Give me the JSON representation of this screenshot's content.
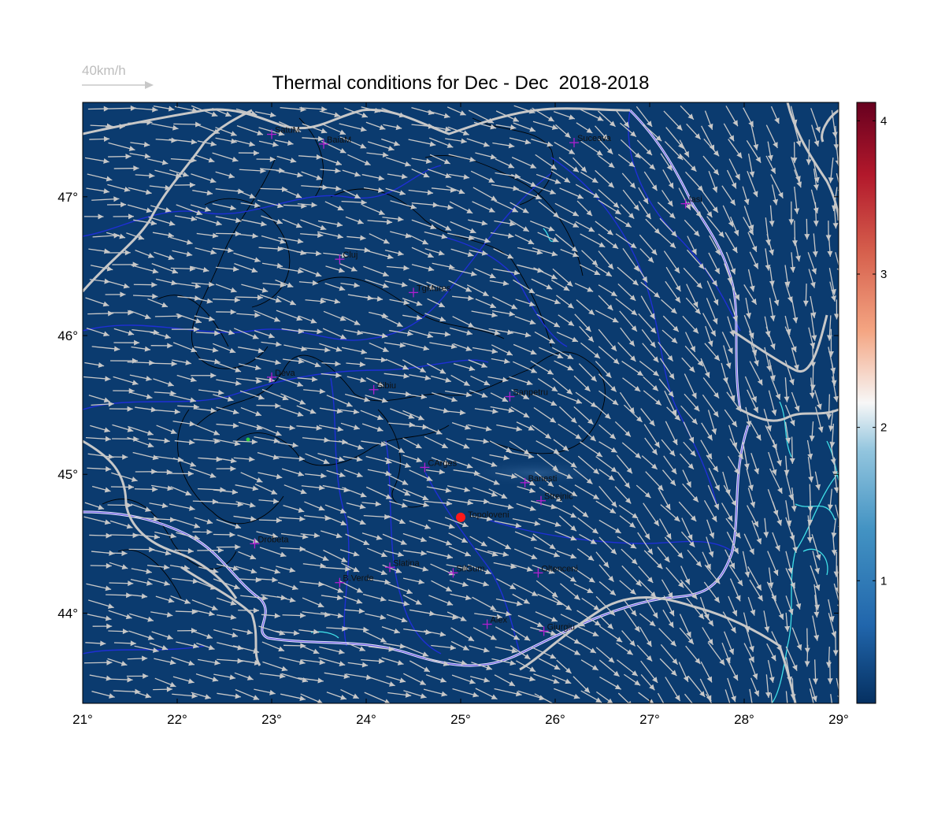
{
  "title": "Thermal conditions for Dec - Dec  2018-2018",
  "wind_scale_label": "40km/h",
  "colors": {
    "background": "#0b3b6f",
    "arrow": "#c8c8c8",
    "border": "#c8c8c8",
    "rivers": "#1f2fd6",
    "water": "#40e0e8",
    "contours": "#000000",
    "city_marker": "#b01fd0",
    "highlight": "#ff1a1a"
  },
  "map": {
    "lon_range": [
      21,
      29
    ],
    "lat_range": [
      43.35,
      47.68
    ],
    "x_ticks": [
      {
        "value": 21,
        "label": "21°"
      },
      {
        "value": 22,
        "label": "22°"
      },
      {
        "value": 23,
        "label": "23°"
      },
      {
        "value": 24,
        "label": "24°"
      },
      {
        "value": 25,
        "label": "25°"
      },
      {
        "value": 26,
        "label": "26°"
      },
      {
        "value": 27,
        "label": "27°"
      },
      {
        "value": 28,
        "label": "28°"
      },
      {
        "value": 29,
        "label": "29°"
      }
    ],
    "y_ticks": [
      {
        "value": 44,
        "label": "44°"
      },
      {
        "value": 45,
        "label": "45°"
      },
      {
        "value": 46,
        "label": "46°"
      },
      {
        "value": 47,
        "label": "47°"
      }
    ],
    "cities": [
      {
        "name": "SatuM",
        "lon": 23.0,
        "lat": 47.45
      },
      {
        "name": "BaiaM",
        "lon": 23.55,
        "lat": 47.38
      },
      {
        "name": "Suceava",
        "lon": 26.2,
        "lat": 47.39
      },
      {
        "name": "Iasi",
        "lon": 27.38,
        "lat": 46.95
      },
      {
        "name": "Cluj",
        "lon": 23.72,
        "lat": 46.55
      },
      {
        "name": "TgMures",
        "lon": 24.5,
        "lat": 46.31
      },
      {
        "name": "Deva",
        "lon": 23.0,
        "lat": 45.7
      },
      {
        "name": "Sibiu",
        "lon": 24.08,
        "lat": 45.61
      },
      {
        "name": "Sanpetru",
        "lon": 25.52,
        "lat": 45.56
      },
      {
        "name": "CArges",
        "lon": 24.62,
        "lat": 45.05
      },
      {
        "name": "Banesti",
        "lon": 25.68,
        "lat": 44.94
      },
      {
        "name": "Strejnic",
        "lon": 25.85,
        "lat": 44.81
      },
      {
        "name": "Drobeta",
        "lon": 22.82,
        "lat": 44.5
      },
      {
        "name": "Slatina",
        "lon": 24.25,
        "lat": 44.33
      },
      {
        "name": "SilGum",
        "lon": 24.92,
        "lat": 44.29
      },
      {
        "name": "Oltenceni",
        "lon": 25.82,
        "lat": 44.29
      },
      {
        "name": "B.Verde",
        "lon": 23.72,
        "lat": 44.22
      },
      {
        "name": "Alex",
        "lon": 25.28,
        "lat": 43.92
      },
      {
        "name": "Giurgiu",
        "lon": 25.88,
        "lat": 43.87
      }
    ],
    "highlight_station": {
      "name": "Topoloveni",
      "lon": 25.0,
      "lat": 44.69
    }
  },
  "colorbar": {
    "min": 0.2,
    "max": 4.12,
    "ticks": [
      {
        "value": 1,
        "label": "1"
      },
      {
        "value": 2,
        "label": "2"
      },
      {
        "value": 3,
        "label": "3"
      },
      {
        "value": 4,
        "label": "4"
      }
    ]
  }
}
